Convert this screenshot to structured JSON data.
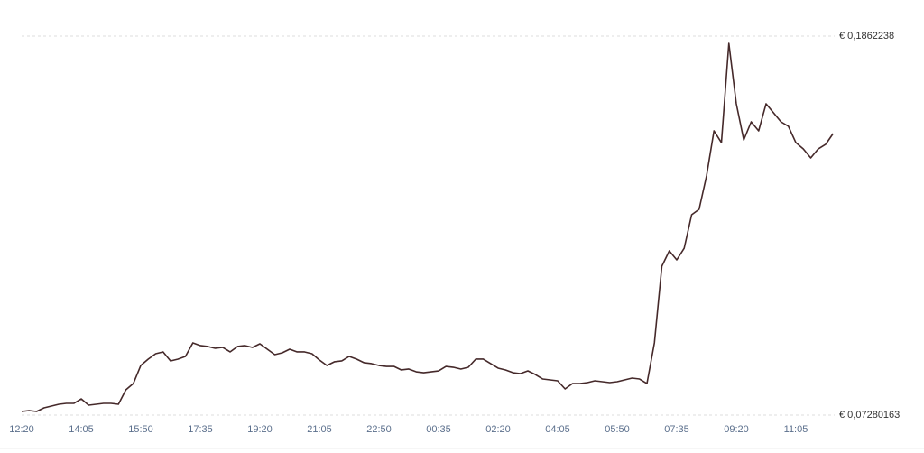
{
  "chart_data": {
    "type": "line",
    "categories": [
      "12:20",
      null,
      null,
      null,
      null,
      null,
      null,
      null,
      "14:05",
      null,
      null,
      null,
      null,
      null,
      null,
      null,
      "15:50",
      null,
      null,
      null,
      null,
      null,
      null,
      null,
      "17:35",
      null,
      null,
      null,
      null,
      null,
      null,
      null,
      "19:20",
      null,
      null,
      null,
      null,
      null,
      null,
      null,
      "21:05",
      null,
      null,
      null,
      null,
      null,
      null,
      null,
      "22:50",
      null,
      null,
      null,
      null,
      null,
      null,
      null,
      "00:35",
      null,
      null,
      null,
      null,
      null,
      null,
      null,
      "02:20",
      null,
      null,
      null,
      null,
      null,
      null,
      null,
      "04:05",
      null,
      null,
      null,
      null,
      null,
      null,
      null,
      "05:50",
      null,
      null,
      null,
      null,
      null,
      null,
      null,
      "07:35",
      null,
      null,
      null,
      null,
      null,
      null,
      null,
      "09:20",
      null,
      null,
      null,
      null,
      null,
      null,
      null,
      "11:05",
      null,
      null,
      null,
      null,
      null
    ],
    "values": [
      0.07388,
      0.07415,
      0.07388,
      0.07496,
      0.0755,
      0.07604,
      0.07631,
      0.07631,
      0.07766,
      0.07577,
      0.07604,
      0.07631,
      0.07631,
      0.07604,
      0.08036,
      0.08225,
      0.08765,
      0.08955,
      0.09117,
      0.09171,
      0.08901,
      0.08955,
      0.09036,
      0.09441,
      0.0936,
      0.09333,
      0.09279,
      0.09306,
      0.09171,
      0.09333,
      0.0936,
      0.09306,
      0.09414,
      0.09252,
      0.0909,
      0.09144,
      0.09252,
      0.09171,
      0.09171,
      0.09117,
      0.08928,
      0.08765,
      0.08874,
      0.08901,
      0.09036,
      0.08955,
      0.08847,
      0.0882,
      0.08765,
      0.08738,
      0.08738,
      0.08631,
      0.08658,
      0.08576,
      0.08549,
      0.08576,
      0.08603,
      0.08738,
      0.08711,
      0.08658,
      0.08711,
      0.08955,
      0.08955,
      0.0882,
      0.08685,
      0.08631,
      0.08549,
      0.08522,
      0.08603,
      0.08495,
      0.0836,
      0.08333,
      0.08306,
      0.08063,
      0.08225,
      0.08225,
      0.08252,
      0.08306,
      0.08279,
      0.08252,
      0.08279,
      0.08333,
      0.08387,
      0.0836,
      0.08225,
      0.09441,
      0.11736,
      0.12195,
      0.11925,
      0.12276,
      0.13275,
      0.13437,
      0.14436,
      0.15787,
      0.15435,
      0.18406,
      0.16597,
      0.15516,
      0.16057,
      0.15787,
      0.16597,
      0.16327,
      0.16057,
      0.15922,
      0.15435,
      0.15246,
      0.14976,
      0.15246,
      0.15382,
      0.15706
    ],
    "color": "#45292a",
    "ylim": [
      0.07280163,
      0.1862238
    ],
    "yticks": [
      {
        "value": 0.1862238,
        "label": "€ 0,1862238"
      },
      {
        "value": 0.07280163,
        "label": "€ 0,07280163"
      }
    ],
    "grid": true
  }
}
